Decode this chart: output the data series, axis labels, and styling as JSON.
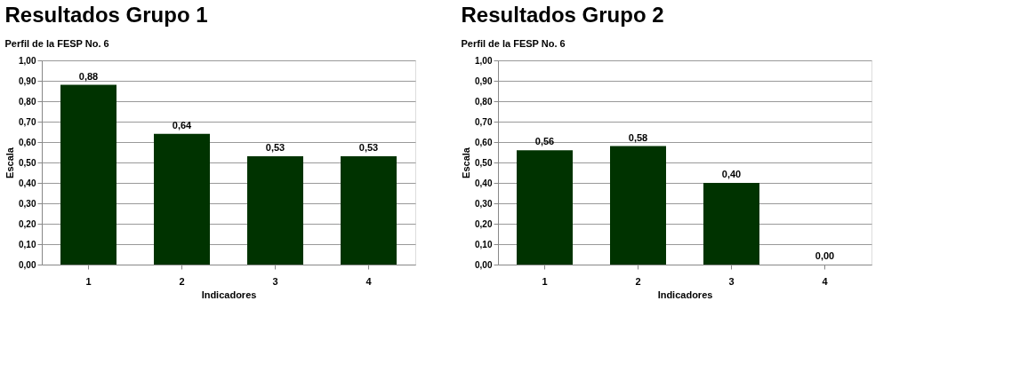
{
  "chart_data": [
    {
      "type": "bar",
      "title": "Resultados Grupo 1",
      "subtitle": "Perfil de la FESP No. 6",
      "xlabel": "Indicadores",
      "ylabel": "Escala",
      "categories": [
        "1",
        "2",
        "3",
        "4"
      ],
      "values": [
        0.88,
        0.64,
        0.53,
        0.53
      ],
      "value_labels": [
        "0,88",
        "0,64",
        "0,53",
        "0,53"
      ],
      "color": "#003300",
      "ylim": [
        0,
        1
      ],
      "yticks": [
        {
          "value": 0,
          "label": "0,00"
        },
        {
          "value": 0.1,
          "label": "0,10"
        },
        {
          "value": 0.2,
          "label": "0,20"
        },
        {
          "value": 0.3,
          "label": "0,30"
        },
        {
          "value": 0.4,
          "label": "0,40"
        },
        {
          "value": 0.5,
          "label": "0,50"
        },
        {
          "value": 0.6,
          "label": "0,60"
        },
        {
          "value": 0.7,
          "label": "0,70"
        },
        {
          "value": 0.8,
          "label": "0,80"
        },
        {
          "value": 0.9,
          "label": "0,90"
        },
        {
          "value": 1,
          "label": "1,00"
        }
      ],
      "grid": "y"
    },
    {
      "type": "bar",
      "title": "Resultados Grupo 2",
      "subtitle": "Perfil de la FESP No. 6",
      "xlabel": "Indicadores",
      "ylabel": "Escala",
      "categories": [
        "1",
        "2",
        "3",
        "4"
      ],
      "values": [
        0.56,
        0.58,
        0.4,
        0
      ],
      "value_labels": [
        "0,56",
        "0,58",
        "0,40",
        "0,00"
      ],
      "color": "#003300",
      "ylim": [
        0,
        1
      ],
      "yticks": [
        {
          "value": 0,
          "label": "0,00"
        },
        {
          "value": 0.1,
          "label": "0,10"
        },
        {
          "value": 0.2,
          "label": "0,20"
        },
        {
          "value": 0.3,
          "label": "0,30"
        },
        {
          "value": 0.4,
          "label": "0,40"
        },
        {
          "value": 0.5,
          "label": "0,50"
        },
        {
          "value": 0.6,
          "label": "0,60"
        },
        {
          "value": 0.7,
          "label": "0,70"
        },
        {
          "value": 0.8,
          "label": "0,80"
        },
        {
          "value": 0.9,
          "label": "0,90"
        },
        {
          "value": 1,
          "label": "1,00"
        }
      ],
      "grid": "y"
    }
  ]
}
